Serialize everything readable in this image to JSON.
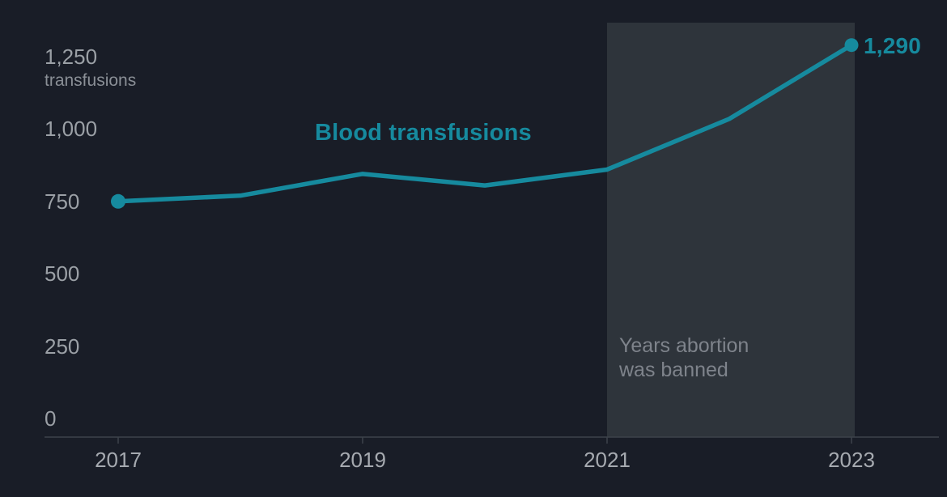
{
  "chart_data": {
    "type": "line",
    "title": "Blood transfusions",
    "x": [
      2017,
      2018,
      2019,
      2020,
      2021,
      2022,
      2023
    ],
    "values": [
      750,
      770,
      845,
      805,
      860,
      1035,
      1290
    ],
    "end_point_label": "1,290",
    "y_axis": {
      "range": [
        0,
        1250
      ],
      "ticks": [
        0,
        250,
        500,
        750,
        1000,
        1250
      ],
      "tick_labels": [
        "0",
        "250",
        "500",
        "750",
        "1,000",
        "1,250"
      ],
      "unit_label": "transfusions",
      "grid": "off"
    },
    "x_axis": {
      "tick_years": [
        2017,
        2019,
        2021,
        2023
      ],
      "tick_labels": [
        "2017",
        "2019",
        "2021",
        "2023"
      ]
    },
    "annotation_band": {
      "from": 2021,
      "to": 2023,
      "label_line1": "Years abortion",
      "label_line2": "was banned"
    },
    "legend": "none",
    "markers": "first and last data points only",
    "colors": {
      "accent_teal": "#168a9e",
      "background": "#191d27",
      "band": "#2e343b",
      "axis_line": "#3d434b",
      "axis_text": "#9ba0a6",
      "band_text": "#7e838b"
    }
  }
}
